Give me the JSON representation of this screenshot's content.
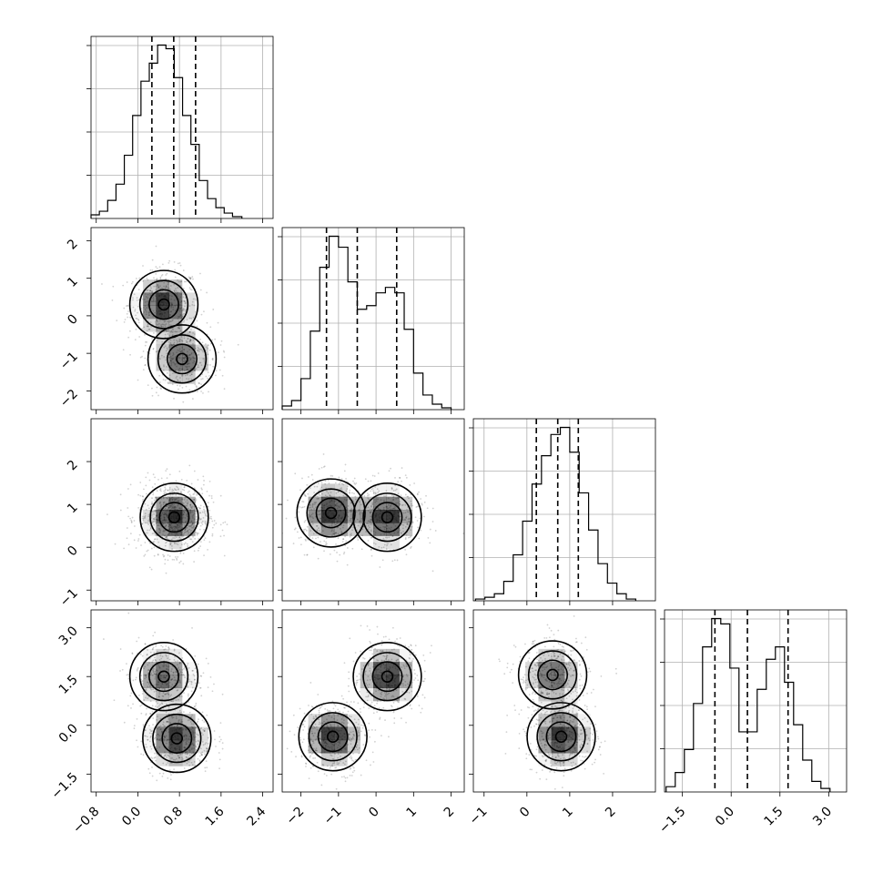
{
  "chart_data": {
    "type": "corner",
    "parameters": 4,
    "grid": true,
    "quantile_levels": [
      0.16,
      0.5,
      0.84
    ],
    "colors": {
      "ink": "#000000",
      "grid": "#b0b0b0",
      "background": "#ffffff"
    },
    "params": [
      {
        "range": [
          -0.9,
          2.6
        ],
        "ticks": [
          -0.8,
          0.0,
          0.8,
          1.6,
          2.4
        ],
        "tick_labels": [
          "−0.8",
          "0.0",
          "0.8",
          "1.6",
          "2.4"
        ],
        "quantiles": [
          0.27,
          0.69,
          1.11
        ],
        "peaks": []
      },
      {
        "range": [
          -2.5,
          2.35
        ],
        "ticks": [
          -2,
          -1,
          0,
          1,
          2
        ],
        "tick_labels": [
          "−2",
          "−1",
          "0",
          "1",
          "2"
        ],
        "quantiles": [
          -1.32,
          -0.5,
          0.55
        ],
        "peaks": [
          -1.1,
          0.2
        ]
      },
      {
        "range": [
          -1.25,
          3.0
        ],
        "ticks": [
          -1,
          0,
          1,
          2
        ],
        "tick_labels": [
          "−1",
          "0",
          "1",
          "2"
        ],
        "quantiles": [
          0.22,
          0.72,
          1.2
        ],
        "peaks": []
      },
      {
        "range": [
          -2.05,
          3.55
        ],
        "ticks": [
          -1.5,
          0.0,
          1.5,
          3.0
        ],
        "tick_labels": [
          "−1.5",
          "0.0",
          "1.5",
          "3.0"
        ],
        "quantiles": [
          -0.5,
          0.5,
          1.75
        ],
        "peaks": [
          -0.45,
          1.5
        ]
      }
    ],
    "histograms": [
      {
        "param": 0,
        "bin_edges": [
          -0.9,
          -0.74,
          -0.58,
          -0.42,
          -0.26,
          -0.1,
          0.06,
          0.22,
          0.38,
          0.54,
          0.7,
          0.86,
          1.02,
          1.18,
          1.34,
          1.5,
          1.66,
          1.82,
          2.0
        ],
        "counts": [
          2,
          4,
          10,
          19,
          35,
          57,
          76,
          86,
          96,
          94,
          78,
          57,
          41,
          21,
          11,
          6,
          3,
          1
        ]
      },
      {
        "param": 1,
        "bin_edges": [
          -2.5,
          -2.25,
          -2.0,
          -1.75,
          -1.5,
          -1.25,
          -1.0,
          -0.75,
          -0.5,
          -0.25,
          0.0,
          0.25,
          0.5,
          0.75,
          1.0,
          1.25,
          1.5,
          1.75,
          2.0
        ],
        "counts": [
          2,
          5,
          17,
          43,
          78,
          95,
          89,
          70,
          55,
          57,
          64,
          67,
          64,
          44,
          20,
          8,
          3,
          1
        ]
      },
      {
        "param": 2,
        "bin_edges": [
          -1.2,
          -0.98,
          -0.76,
          -0.54,
          -0.32,
          -0.1,
          0.12,
          0.34,
          0.56,
          0.78,
          1.0,
          1.22,
          1.44,
          1.66,
          1.88,
          2.1,
          2.32,
          2.54
        ],
        "counts": [
          1,
          2,
          4,
          11,
          26,
          45,
          66,
          82,
          94,
          98,
          84,
          61,
          40,
          21,
          10,
          4,
          1
        ]
      },
      {
        "param": 3,
        "bin_edges": [
          -2.0,
          -1.72,
          -1.44,
          -1.16,
          -0.88,
          -0.6,
          -0.32,
          -0.04,
          0.24,
          0.52,
          0.8,
          1.08,
          1.36,
          1.64,
          1.92,
          2.2,
          2.48,
          2.76,
          3.04
        ],
        "counts": [
          3,
          11,
          24,
          50,
          82,
          98,
          95,
          70,
          34,
          34,
          58,
          75,
          82,
          62,
          38,
          18,
          6,
          2
        ]
      }
    ],
    "panels_2d": [
      {
        "x_param": 0,
        "y_param": 1,
        "modes": [
          {
            "x": 0.5,
            "y": 0.3,
            "weight": 0.55
          },
          {
            "x": 0.85,
            "y": -1.15,
            "weight": 0.45
          }
        ]
      },
      {
        "x_param": 0,
        "y_param": 2,
        "modes": [
          {
            "x": 0.7,
            "y": 0.7,
            "weight": 1.0
          }
        ]
      },
      {
        "x_param": 0,
        "y_param": 3,
        "modes": [
          {
            "x": 0.5,
            "y": 1.5,
            "weight": 0.45
          },
          {
            "x": 0.75,
            "y": -0.4,
            "weight": 0.55
          }
        ]
      },
      {
        "x_param": 1,
        "y_param": 2,
        "modes": [
          {
            "x": -1.2,
            "y": 0.8,
            "weight": 0.5
          },
          {
            "x": 0.3,
            "y": 0.7,
            "weight": 0.5
          }
        ]
      },
      {
        "x_param": 1,
        "y_param": 3,
        "modes": [
          {
            "x": -1.15,
            "y": -0.35,
            "weight": 0.5
          },
          {
            "x": 0.3,
            "y": 1.5,
            "weight": 0.5
          }
        ]
      },
      {
        "x_param": 2,
        "y_param": 3,
        "modes": [
          {
            "x": 0.6,
            "y": 1.55,
            "weight": 0.45
          },
          {
            "x": 0.8,
            "y": -0.35,
            "weight": 0.55
          }
        ]
      }
    ]
  }
}
